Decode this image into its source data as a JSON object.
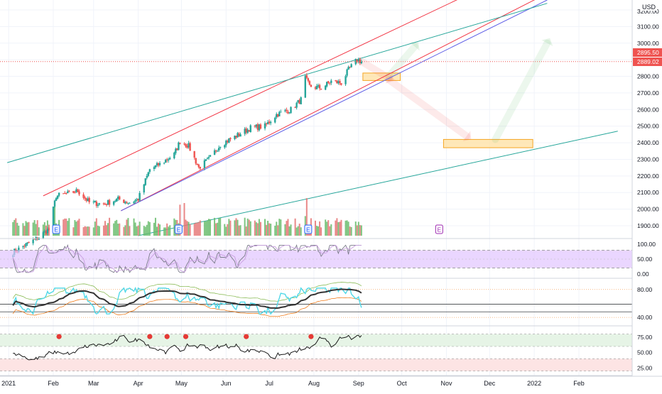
{
  "currency": "USD",
  "price_badges": [
    {
      "value": "2895.50",
      "color": "#ef5350"
    },
    {
      "value": "2889.02",
      "color": "#ef5350"
    }
  ],
  "x_labels": [
    "2021",
    "Feb",
    "Mar",
    "Apr",
    "May",
    "Jun",
    "Jul",
    "Aug",
    "Sep",
    "Oct",
    "Nov",
    "Dec",
    "2022",
    "Feb"
  ],
  "earnings_marker": "E",
  "colors": {
    "up": "#26a69a",
    "down": "#ef5350",
    "vol_up": "#66bb6a",
    "vol_down": "#e57373",
    "channel_red": "#f23645",
    "channel_green": "#26a69a",
    "mid_line": "#5c5ce6",
    "zone_fill": "#ffe0a0",
    "zone_border": "#f5a623",
    "stoch_band": "#e1c4ff",
    "rsi_cyan": "#4fd8e8",
    "rsi_black": "#333333",
    "panel3_green": "#e6f4e6",
    "panel3_red": "#fde4e4",
    "dot_red": "#e53935"
  },
  "chart_data": [
    {
      "type": "candlestick",
      "panel": "price",
      "y_ticks": [
        1900,
        2000,
        2100,
        2200,
        2300,
        2400,
        2500,
        2600,
        2700,
        2800,
        2900,
        3000,
        3100,
        3200
      ],
      "y_tick_labels": [
        "1900.00",
        "2000.00",
        "2100.00",
        "2200.00",
        "2300.00",
        "2400.00",
        "2500.00",
        "2600.00",
        "2700.00",
        "2800.00",
        "2900.00",
        "3000.00",
        "3100.00",
        "3200.00"
      ],
      "ylim": [
        1840,
        3260
      ],
      "anchors": [
        [
          "2021-01-04",
          1740
        ],
        [
          "2021-01-20",
          1820
        ],
        [
          "2021-01-29",
          1880
        ],
        [
          "2021-02-03",
          2080
        ],
        [
          "2021-02-10",
          2090
        ],
        [
          "2021-02-18",
          2110
        ],
        [
          "2021-02-26",
          2040
        ],
        [
          "2021-03-08",
          2030
        ],
        [
          "2021-03-18",
          2060
        ],
        [
          "2021-03-26",
          2040
        ],
        [
          "2021-04-01",
          2060
        ],
        [
          "2021-04-09",
          2240
        ],
        [
          "2021-04-16",
          2270
        ],
        [
          "2021-04-26",
          2330
        ],
        [
          "2021-04-30",
          2410
        ],
        [
          "2021-05-06",
          2380
        ],
        [
          "2021-05-13",
          2250
        ],
        [
          "2021-05-20",
          2300
        ],
        [
          "2021-05-28",
          2390
        ],
        [
          "2021-06-08",
          2440
        ],
        [
          "2021-06-18",
          2490
        ],
        [
          "2021-06-28",
          2500
        ],
        [
          "2021-07-06",
          2570
        ],
        [
          "2021-07-16",
          2600
        ],
        [
          "2021-07-23",
          2660
        ],
        [
          "2021-07-26",
          2790
        ],
        [
          "2021-07-29",
          2740
        ],
        [
          "2021-08-06",
          2730
        ],
        [
          "2021-08-13",
          2770
        ],
        [
          "2021-08-20",
          2760
        ],
        [
          "2021-08-25",
          2840
        ],
        [
          "2021-08-31",
          2900
        ],
        [
          "2021-09-03",
          2889
        ]
      ],
      "channels": [
        {
          "name": "",
          "color": "#f23645",
          "from": [
            "2021-01-25",
            2080
          ],
          "to": [
            "2022-02-28",
            3720
          ]
        },
        {
          "name": "",
          "color": "#f23645",
          "from": [
            "2021-03-20",
            1990
          ],
          "to": [
            "2022-01-10",
            3300
          ]
        },
        {
          "name": "",
          "color": "#5c5ce6",
          "from": [
            "2021-03-20",
            1990
          ],
          "to": [
            "2022-01-10",
            3260
          ]
        },
        {
          "name": "",
          "color": "#26a69a",
          "from": [
            "2020-12-31",
            2280
          ],
          "to": [
            "2022-01-10",
            3240
          ]
        },
        {
          "name": "",
          "color": "#26a69a",
          "from": [
            "2021-04-01",
            1840
          ],
          "to": [
            "2022-02-28",
            2470
          ]
        }
      ],
      "zones": [
        {
          "from": "2021-09-04",
          "to": "2021-09-30",
          "low": 2775,
          "high": 2820
        },
        {
          "from": "2021-10-30",
          "to": "2021-12-31",
          "low": 2370,
          "high": 2420
        }
      ],
      "projection_arrows": [
        {
          "color": "#ef5350",
          "points": [
            [
              "2021-09-03",
              2890
            ],
            [
              "2021-09-22",
              2790
            ]
          ]
        },
        {
          "color": "#66bb6a",
          "points": [
            [
              "2021-09-22",
              2800
            ],
            [
              "2021-10-10",
              2980
            ]
          ]
        },
        {
          "color": "#ef5350",
          "points": [
            [
              "2021-09-22",
              2780
            ],
            [
              "2021-11-15",
              2440
            ]
          ]
        },
        {
          "color": "#66bb6a",
          "points": [
            [
              "2021-12-05",
              2420
            ],
            [
              "2022-01-10",
              3000
            ]
          ]
        }
      ],
      "last_price": 2889.02
    },
    {
      "type": "bar",
      "panel": "volume",
      "note": "volume bars in price panel bottom, relative heights 0-1",
      "spikes": [
        [
          "2021-02-02",
          0.9
        ],
        [
          "2021-04-30",
          0.95
        ],
        [
          "2021-05-03",
          1.0
        ],
        [
          "2021-06-14",
          0.55
        ],
        [
          "2021-07-26",
          0.6
        ],
        [
          "2021-07-27",
          1.15
        ]
      ]
    },
    {
      "type": "line",
      "panel": "stochastic",
      "y_ticks": [
        0,
        50,
        100
      ],
      "y_tick_labels": [
        "0.00",
        "50.00",
        "100.00"
      ],
      "band": [
        20,
        80
      ],
      "ylim": [
        -10,
        110
      ]
    },
    {
      "type": "line",
      "panel": "rsi",
      "y_ticks": [
        40,
        80
      ],
      "y_tick_labels": [
        "40.00",
        "80.00"
      ],
      "ylim": [
        30,
        95
      ]
    },
    {
      "type": "line",
      "panel": "oscillator",
      "y_ticks": [
        25,
        50,
        75
      ],
      "y_tick_labels": [
        "25.00",
        "50.00",
        "75.00"
      ],
      "band_high": [
        60,
        80
      ],
      "band_low": [
        20,
        40
      ],
      "ylim": [
        15,
        90
      ],
      "signal_dots": [
        "2021-02-05",
        "2021-04-09",
        "2021-04-21",
        "2021-05-04",
        "2021-06-15",
        "2021-07-30"
      ]
    }
  ]
}
